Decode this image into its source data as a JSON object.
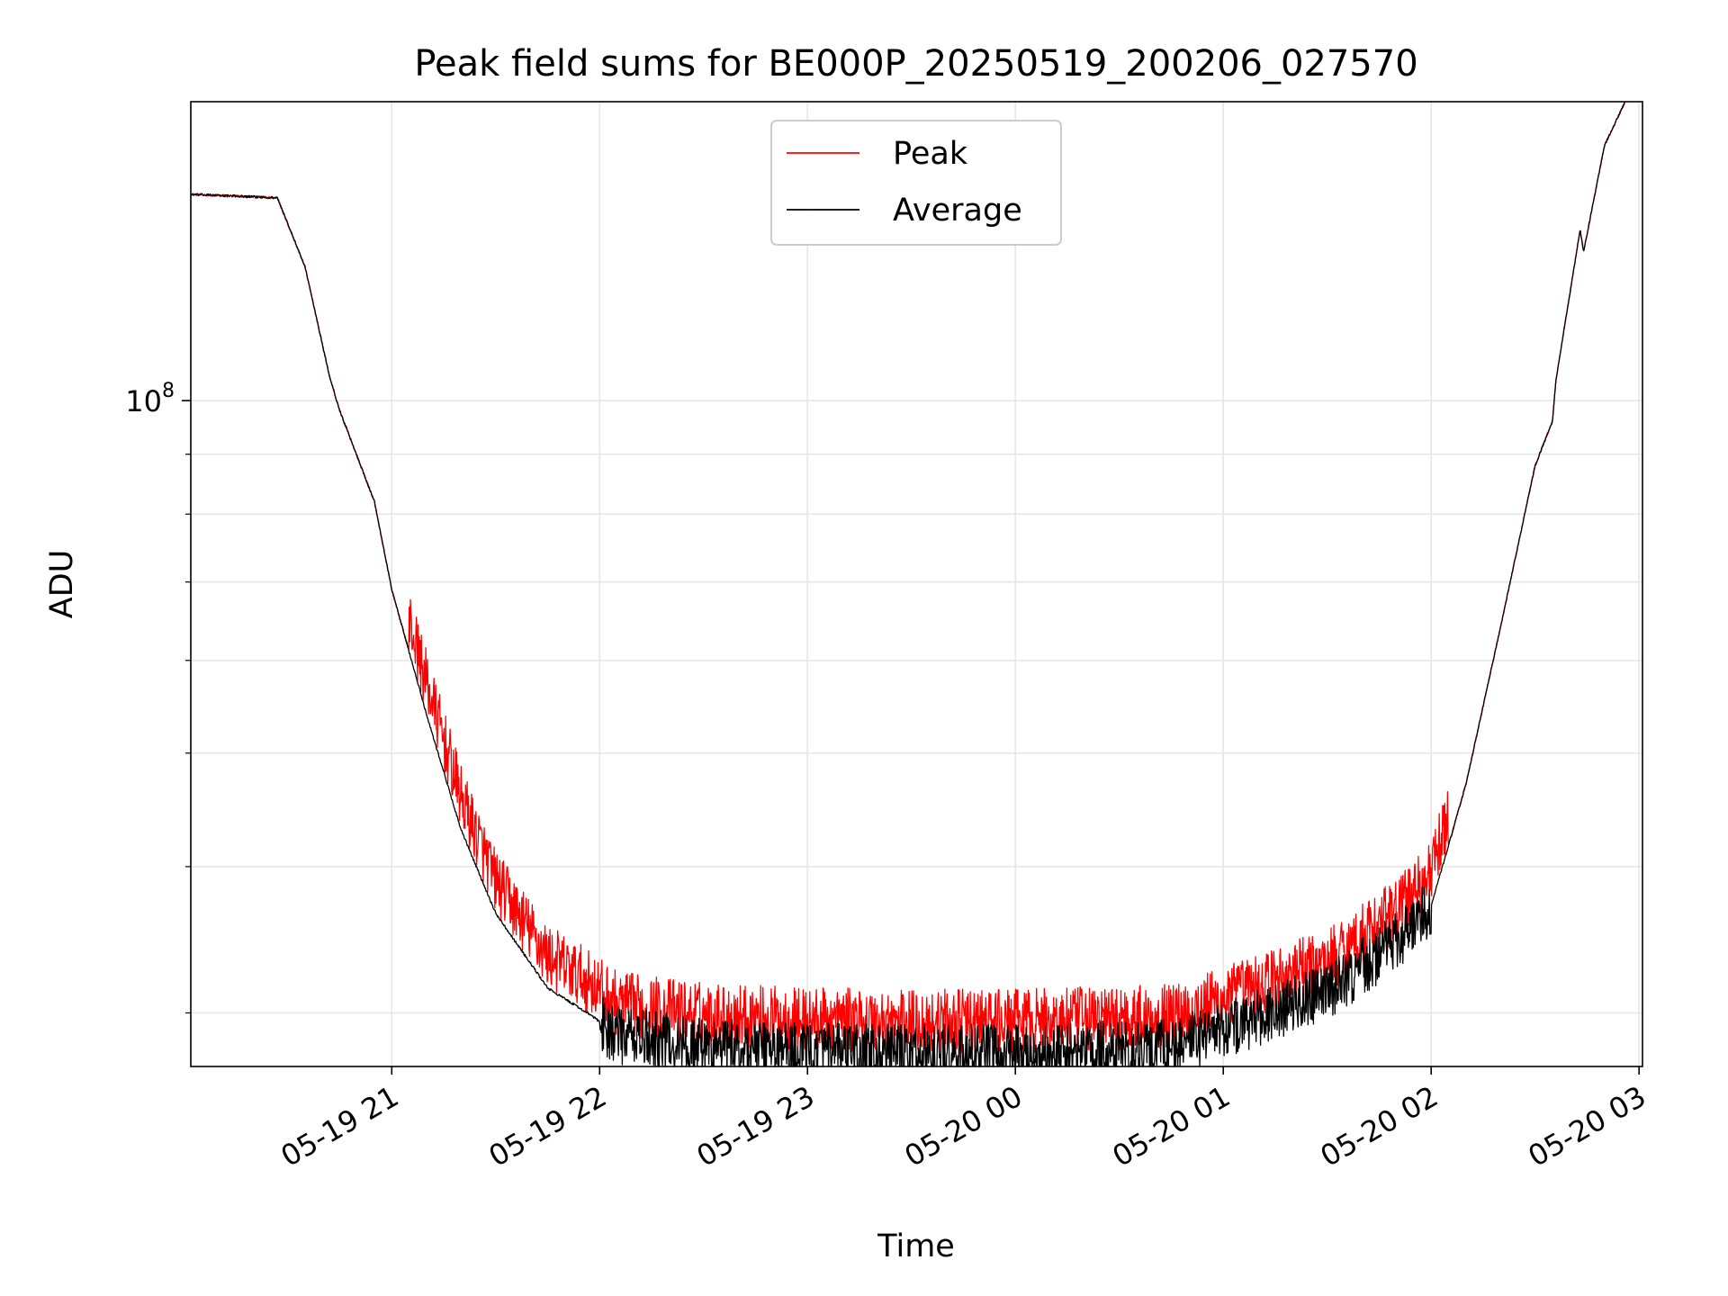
{
  "chart_data": {
    "type": "line",
    "title": "Peak field sums for BE000P_20250519_200206_027570",
    "xlabel": "Time",
    "ylabel": "ADU",
    "y_scale": "log",
    "grid": true,
    "grid_color": "#e6e6e6",
    "legend_position": "top-center",
    "x_range": [
      "2025-05-19 20:02",
      "2025-05-20 03:01"
    ],
    "ylim": [
      27000000,
      180000000
    ],
    "x_ticks": [
      {
        "t": "2025-05-19 21:00",
        "label": "05-19 21"
      },
      {
        "t": "2025-05-19 22:00",
        "label": "05-19 22"
      },
      {
        "t": "2025-05-19 23:00",
        "label": "05-19 23"
      },
      {
        "t": "2025-05-20 00:00",
        "label": "05-20 00"
      },
      {
        "t": "2025-05-20 01:00",
        "label": "05-20 01"
      },
      {
        "t": "2025-05-20 02:00",
        "label": "05-20 02"
      },
      {
        "t": "2025-05-20 03:00",
        "label": "05-20 03"
      }
    ],
    "y_major_tick": {
      "value": 100000000,
      "label_base": "10",
      "label_exp": "8"
    },
    "y_minor_ticks": [
      30000000,
      40000000,
      50000000,
      60000000,
      70000000,
      80000000,
      90000000
    ],
    "series": [
      {
        "name": "Peak",
        "color": "#ff0000",
        "noise": {
          "start": "2025-05-19 21:05",
          "end": "2025-05-20 02:05",
          "amplitude": 0.055
        }
      },
      {
        "name": "Average",
        "color": "#000000",
        "noise": {
          "start": "2025-05-19 22:00",
          "end": "2025-05-20 02:00",
          "amplitude": 0.025
        }
      }
    ],
    "trend": [
      {
        "t": "2025-05-19 20:02",
        "v": 150000000
      },
      {
        "t": "2025-05-19 20:15",
        "v": 149500000
      },
      {
        "t": "2025-05-19 20:27",
        "v": 149000000
      },
      {
        "t": "2025-05-19 20:35",
        "v": 130000000
      },
      {
        "t": "2025-05-19 20:42",
        "v": 105000000
      },
      {
        "t": "2025-05-19 20:45",
        "v": 98000000
      },
      {
        "t": "2025-05-19 20:55",
        "v": 82000000
      },
      {
        "t": "2025-05-19 21:00",
        "v": 69000000
      },
      {
        "t": "2025-05-19 21:10",
        "v": 54000000
      },
      {
        "t": "2025-05-19 21:20",
        "v": 43000000
      },
      {
        "t": "2025-05-19 21:30",
        "v": 36500000
      },
      {
        "t": "2025-05-19 21:45",
        "v": 31500000
      },
      {
        "t": "2025-05-19 21:58",
        "v": 29800000
      },
      {
        "t": "2025-05-19 22:05",
        "v": 28700000
      },
      {
        "t": "2025-05-19 22:30",
        "v": 28100000
      },
      {
        "t": "2025-05-19 23:00",
        "v": 27800000
      },
      {
        "t": "2025-05-19 23:30",
        "v": 27700000
      },
      {
        "t": "2025-05-20 00:00",
        "v": 27700000
      },
      {
        "t": "2025-05-20 00:45",
        "v": 28000000
      },
      {
        "t": "2025-05-20 01:00",
        "v": 29000000
      },
      {
        "t": "2025-05-20 01:30",
        "v": 31200000
      },
      {
        "t": "2025-05-20 01:50",
        "v": 34500000
      },
      {
        "t": "2025-05-20 02:00",
        "v": 37000000
      },
      {
        "t": "2025-05-20 02:10",
        "v": 47000000
      },
      {
        "t": "2025-05-20 02:20",
        "v": 64000000
      },
      {
        "t": "2025-05-20 02:30",
        "v": 88000000
      },
      {
        "t": "2025-05-20 02:35",
        "v": 96000000
      },
      {
        "t": "2025-05-20 02:36",
        "v": 104000000
      },
      {
        "t": "2025-05-20 02:43",
        "v": 140000000
      },
      {
        "t": "2025-05-20 02:44",
        "v": 134000000
      },
      {
        "t": "2025-05-20 02:50",
        "v": 165000000
      },
      {
        "t": "2025-05-20 02:56",
        "v": 180000000
      }
    ]
  }
}
